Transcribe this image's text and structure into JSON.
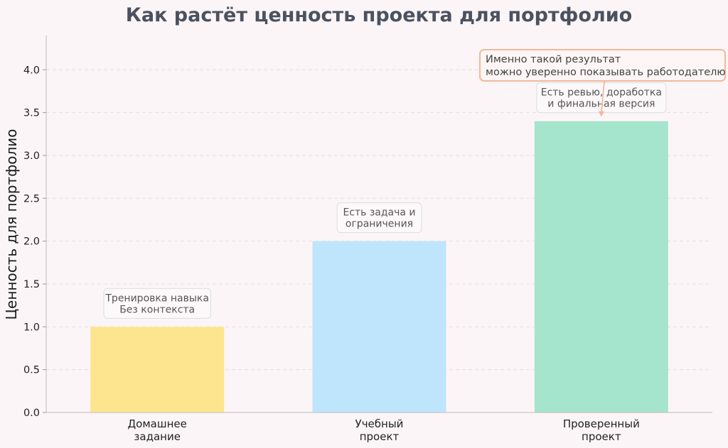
{
  "chart_data": {
    "type": "bar",
    "title": "Как растёт ценность проекта для портфолио",
    "xlabel": "",
    "ylabel": "Ценность для портфолио",
    "ylim": [
      0,
      4.4
    ],
    "yticks": [
      "0.0",
      "0.5",
      "1.0",
      "1.5",
      "2.0",
      "2.5",
      "3.0",
      "3.5",
      "4.0"
    ],
    "grid": "horizontal dashed",
    "categories": [
      [
        "Домашнее",
        "задание"
      ],
      [
        "Учебный",
        "проект"
      ],
      [
        "Проверенный",
        "проект"
      ]
    ],
    "values": [
      1.0,
      2.0,
      3.4
    ],
    "colors": [
      "#fde58f",
      "#bee5fb",
      "#a6e5cd"
    ],
    "annotations": [
      [
        "Тренировка навыка",
        "Без контекста"
      ],
      [
        "Есть задача и",
        "ограничения"
      ],
      [
        "Есть ревью, доработка",
        "и финальная версия"
      ]
    ],
    "callout": {
      "lines": [
        "Именно такой результат",
        "можно уверенно показывать работодателю"
      ],
      "target": "Проверенный проект",
      "color": "#f0b99c"
    }
  }
}
